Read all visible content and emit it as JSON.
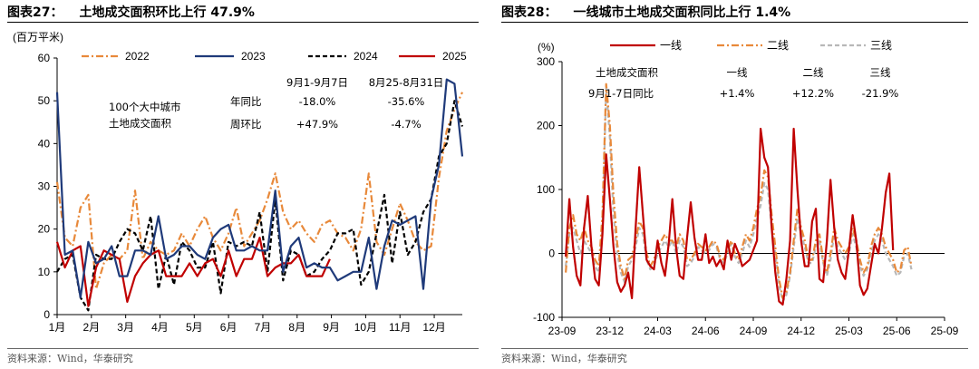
{
  "left": {
    "title_num": "图表27：",
    "title": "土地成交面积环比上行 47.9%",
    "source": "资料来源：Wind，华泰研究",
    "chart_data": {
      "type": "line",
      "ylabel": "(百万平米)",
      "ylim": [
        0,
        60
      ],
      "yticks": [
        0,
        10,
        20,
        30,
        40,
        50,
        60
      ],
      "xlim": [
        1,
        53
      ],
      "month_ticks": [
        {
          "label": "1月",
          "x": 1
        },
        {
          "label": "2月",
          "x": 5.4
        },
        {
          "label": "3月",
          "x": 9.8
        },
        {
          "label": "4月",
          "x": 14.2
        },
        {
          "label": "5月",
          "x": 18.6
        },
        {
          "label": "6月",
          "x": 23
        },
        {
          "label": "7月",
          "x": 27.4
        },
        {
          "label": "8月",
          "x": 31.8
        },
        {
          "label": "9月",
          "x": 36.2
        },
        {
          "label": "10月",
          "x": 40.6
        },
        {
          "label": "11月",
          "x": 45
        },
        {
          "label": "12月",
          "x": 49.4
        }
      ],
      "series": [
        {
          "name": "2022",
          "color": "#E8893A",
          "dash": "dashdot",
          "x0": 1,
          "values": [
            31,
            18,
            16,
            25,
            28,
            6,
            12,
            14,
            13,
            15,
            29,
            13,
            17,
            15,
            14,
            15,
            19,
            16,
            20,
            23,
            18,
            15,
            19,
            25,
            16,
            19,
            22,
            27,
            33,
            24,
            20,
            22,
            19,
            17,
            21,
            22,
            19,
            18,
            15,
            20,
            33,
            17,
            14,
            20,
            26,
            22,
            17,
            15,
            16,
            32,
            43,
            48,
            52
          ]
        },
        {
          "name": "2023",
          "color": "#1F3A7A",
          "dash": "solid",
          "x0": 1,
          "values": [
            52,
            14,
            15,
            4,
            17,
            12,
            13,
            16,
            9,
            9,
            15,
            15,
            14,
            23,
            13,
            14,
            16,
            16,
            14,
            13,
            18,
            20,
            21,
            15,
            15,
            16,
            15,
            15,
            29,
            10,
            16,
            18,
            11,
            12,
            11,
            11,
            8,
            9,
            10,
            10,
            18,
            6,
            16,
            22,
            21,
            22,
            23,
            6,
            27,
            35,
            55,
            54,
            37
          ]
        },
        {
          "name": "2024",
          "color": "#000000",
          "dash": "dashed",
          "x0": 1,
          "values": [
            10,
            13,
            14,
            4,
            1,
            14,
            13,
            13,
            17,
            20,
            19,
            15,
            23,
            6,
            14,
            7,
            17,
            15,
            11,
            11,
            17,
            5,
            17,
            16,
            17,
            16,
            24,
            10,
            27,
            8,
            15,
            14,
            9,
            10,
            13,
            15,
            19,
            19,
            20,
            7,
            10,
            19,
            28,
            12,
            24,
            14,
            17,
            24,
            27,
            37,
            40,
            50,
            44
          ]
        },
        {
          "name": "2025",
          "color": "#C00000",
          "dash": "solid",
          "x0": 1,
          "values": [
            17,
            11,
            15,
            16,
            2,
            11,
            15,
            14,
            13,
            3,
            9,
            12,
            14,
            15,
            9,
            9,
            9,
            12,
            9,
            12,
            13,
            9,
            15,
            9,
            13,
            13,
            18,
            9,
            11,
            12,
            12,
            14,
            9,
            9,
            9,
            13
          ]
        }
      ],
      "annotation": {
        "line1": "100个大中城市",
        "line2": "土地成交面积",
        "col1_header": "9月1-9月7日",
        "col2_header": "8月25-8月31日",
        "row1_label": "年同比",
        "row1_v1": "-18.0%",
        "row1_v2": "-35.6%",
        "row2_label": "周环比",
        "row2_v1": "+47.9%",
        "row2_v2": "-4.7%"
      }
    }
  },
  "right": {
    "title_num": "图表28：",
    "title": "一线城市土地成交面积同比上行 1.4%",
    "source": "资料来源：Wind，华泰研究",
    "chart_data": {
      "type": "line",
      "ylabel": "(%)",
      "ylim": [
        -100,
        300
      ],
      "yticks": [
        -100,
        0,
        100,
        200,
        300
      ],
      "xlim": [
        0,
        104
      ],
      "xticks": [
        {
          "label": "23-09",
          "x": 0
        },
        {
          "label": "23-12",
          "x": 13
        },
        {
          "label": "24-03",
          "x": 26
        },
        {
          "label": "24-06",
          "x": 39
        },
        {
          "label": "24-09",
          "x": 52
        },
        {
          "label": "24-12",
          "x": 65
        },
        {
          "label": "25-03",
          "x": 78
        },
        {
          "label": "25-06",
          "x": 91
        },
        {
          "label": "25-09",
          "x": 104
        }
      ],
      "series": [
        {
          "name": "一线",
          "color": "#C00000",
          "dash": "solid",
          "x0": 1,
          "values": [
            -5,
            85,
            10,
            -35,
            -50,
            40,
            90,
            10,
            -40,
            -50,
            30,
            155,
            85,
            10,
            -45,
            -60,
            -50,
            -30,
            -70,
            40,
            135,
            60,
            -10,
            -20,
            -25,
            20,
            -15,
            -35,
            15,
            85,
            10,
            -35,
            -40,
            25,
            80,
            25,
            -10,
            -10,
            30,
            -15,
            -5,
            -20,
            -10,
            -25,
            20,
            -10,
            15,
            0,
            -20,
            -15,
            -10,
            5,
            20,
            195,
            150,
            135,
            40,
            -30,
            -75,
            -80,
            -40,
            20,
            195,
            100,
            20,
            -20,
            -20,
            50,
            70,
            -40,
            -45,
            20,
            115,
            40,
            -10,
            -30,
            -40,
            5,
            60,
            20,
            -50,
            -65,
            -55,
            -20,
            15,
            0,
            40,
            95,
            125,
            5
          ]
        },
        {
          "name": "二线",
          "color": "#E8893A",
          "dash": "dashdot",
          "x0": 1,
          "values": [
            -30,
            40,
            60,
            30,
            20,
            40,
            20,
            10,
            -10,
            -20,
            60,
            265,
            200,
            90,
            15,
            -20,
            -40,
            -10,
            -5,
            20,
            50,
            40,
            0,
            -20,
            -10,
            10,
            20,
            30,
            20,
            20,
            10,
            30,
            20,
            -10,
            -10,
            0,
            15,
            10,
            5,
            10,
            20,
            15,
            -5,
            -10,
            5,
            20,
            0,
            -10,
            10,
            30,
            20,
            40,
            70,
            90,
            130,
            120,
            60,
            10,
            -40,
            -70,
            -60,
            -30,
            20,
            70,
            40,
            20,
            -10,
            -10,
            20,
            30,
            -10,
            -30,
            0,
            40,
            20,
            10,
            0,
            10,
            40,
            20,
            -10,
            -30,
            -20,
            10,
            30,
            40,
            30,
            10,
            0,
            -10,
            -30,
            -25,
            5,
            10,
            -20
          ]
        },
        {
          "name": "三线",
          "color": "#B8B8B8",
          "dash": "dashed",
          "x0": 1,
          "values": [
            -20,
            30,
            40,
            20,
            0,
            20,
            10,
            0,
            -20,
            -30,
            40,
            260,
            180,
            60,
            0,
            -30,
            -45,
            -20,
            -10,
            10,
            40,
            30,
            -10,
            -25,
            -20,
            0,
            10,
            20,
            10,
            20,
            0,
            20,
            10,
            -20,
            -15,
            -5,
            10,
            5,
            0,
            5,
            15,
            10,
            -10,
            -15,
            0,
            15,
            -5,
            -15,
            0,
            20,
            10,
            30,
            55,
            75,
            110,
            100,
            40,
            0,
            -50,
            -75,
            -65,
            -35,
            10,
            55,
            30,
            10,
            -15,
            -15,
            10,
            20,
            -15,
            -35,
            -10,
            30,
            10,
            0,
            -10,
            0,
            30,
            10,
            -20,
            -35,
            -25,
            0,
            20,
            30,
            20,
            0,
            -10,
            -20,
            -35,
            -30,
            -5,
            0,
            -25
          ]
        }
      ],
      "annotation": {
        "header_label": "土地成交面积",
        "h1": "一线",
        "h2": "二线",
        "h3": "三线",
        "row_label": "9月1-7日同比",
        "v1": "+1.4%",
        "v2": "+12.2%",
        "v3": "-21.9%"
      }
    }
  }
}
